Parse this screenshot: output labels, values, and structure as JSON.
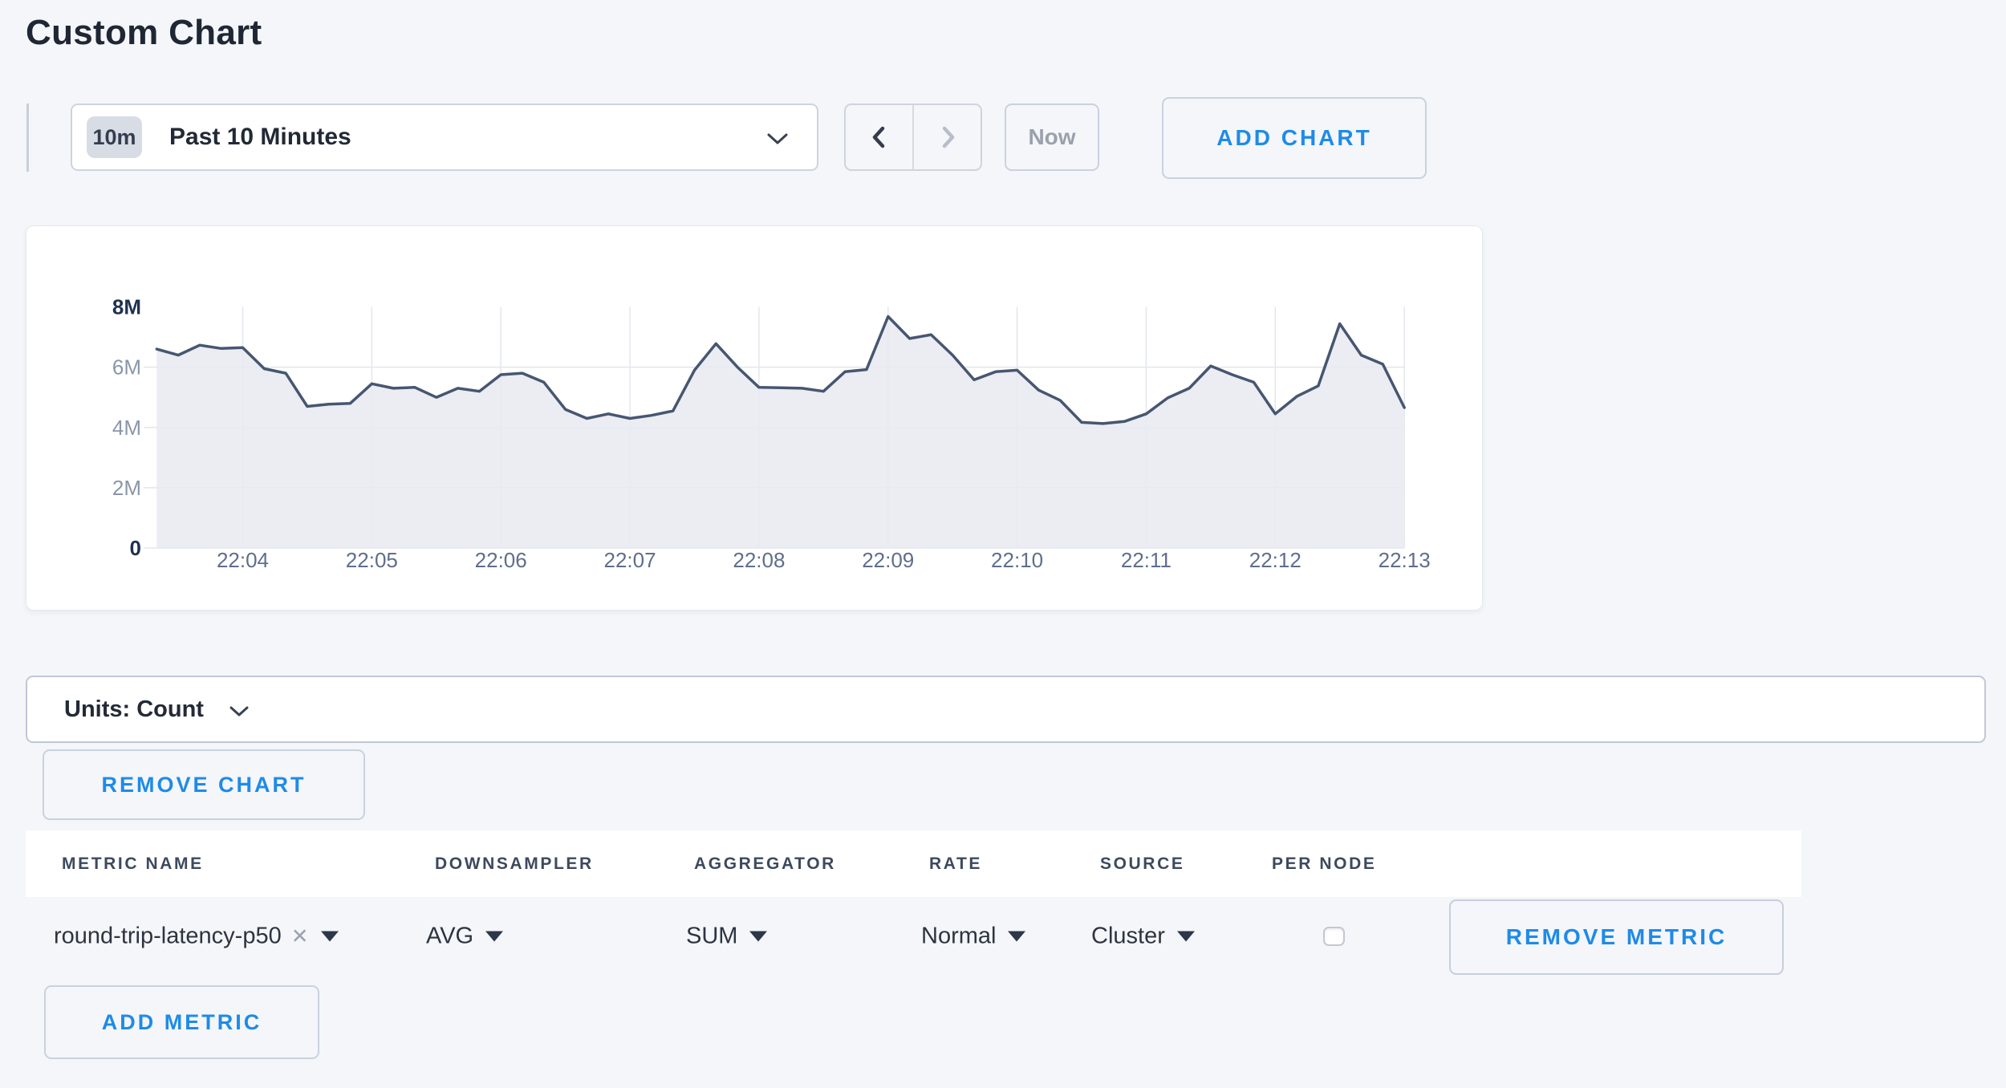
{
  "page": {
    "title": "Custom Chart"
  },
  "toolbar": {
    "time_badge": "10m",
    "time_label": "Past 10 Minutes",
    "now_label": "Now",
    "add_chart_label": "ADD CHART"
  },
  "chart_data": {
    "type": "area",
    "title": "",
    "xlabel": "",
    "ylabel": "",
    "x_start": "22:03:20",
    "x_interval_seconds": 10,
    "x_tick_labels": [
      "22:04",
      "22:05",
      "22:06",
      "22:07",
      "22:08",
      "22:09",
      "22:10",
      "22:11",
      "22:12",
      "22:13"
    ],
    "y_tick_labels": [
      "0",
      "2M",
      "4M",
      "6M",
      "8M"
    ],
    "ylim_millions": [
      0,
      8
    ],
    "grid": true,
    "legend": "none",
    "line_color": "#475670",
    "fill_color": "#e8eaf1",
    "values_millions": [
      6.6,
      6.4,
      6.73,
      6.62,
      6.65,
      5.95,
      5.8,
      4.7,
      4.77,
      4.8,
      5.45,
      5.3,
      5.33,
      5.0,
      5.3,
      5.2,
      5.75,
      5.8,
      5.5,
      4.6,
      4.3,
      4.45,
      4.3,
      4.4,
      4.55,
      5.9,
      6.78,
      6.0,
      5.33,
      5.32,
      5.3,
      5.2,
      5.85,
      5.92,
      7.68,
      6.95,
      7.08,
      6.4,
      5.58,
      5.85,
      5.9,
      5.24,
      4.9,
      4.17,
      4.13,
      4.2,
      4.45,
      4.98,
      5.3,
      6.04,
      5.75,
      5.5,
      4.45,
      5.03,
      5.38,
      7.44,
      6.4,
      6.1,
      4.66
    ]
  },
  "units_bar": {
    "label": "Units: Count"
  },
  "chart_actions": {
    "remove_chart_label": "REMOVE CHART"
  },
  "metrics_table": {
    "columns": [
      "METRIC NAME",
      "DOWNSAMPLER",
      "AGGREGATOR",
      "RATE",
      "SOURCE",
      "PER NODE"
    ],
    "row": {
      "metric_name": "round-trip-latency-p50",
      "downsampler": "AVG",
      "aggregator": "SUM",
      "rate": "Normal",
      "source": "Cluster",
      "per_node_checked": false,
      "remove_metric_label": "REMOVE METRIC"
    },
    "add_metric_label": "ADD METRIC"
  },
  "icons": {
    "clear_metric": "✕"
  },
  "colors": {
    "accent_blue": "#1e8be8",
    "page_bg": "#f4f6f9",
    "line": "#475670",
    "area_fill": "#e8eaf1",
    "grid": "#e2e6ee",
    "axis_dark": "#1f3150",
    "axis_light": "#8a96aa",
    "x_label": "#5f6e8c"
  }
}
